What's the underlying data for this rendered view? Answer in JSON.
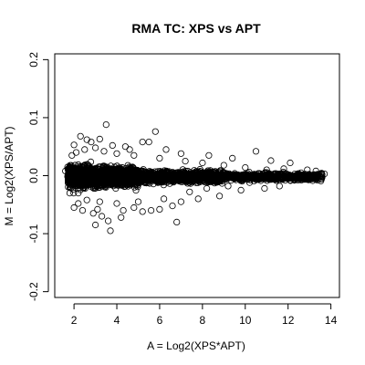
{
  "chart_data": {
    "type": "scatter",
    "title": "RMA TC: XPS vs APT",
    "xlabel": "A = Log2(XPS*APT)",
    "ylabel": "M = Log2(XPS/APT)",
    "xlim": [
      1.1,
      14.4
    ],
    "ylim": [
      -0.21,
      0.21
    ],
    "xticks": [
      2,
      4,
      6,
      8,
      10,
      12,
      14
    ],
    "yticks": [
      -0.2,
      -0.1,
      0.0,
      0.1,
      0.2
    ],
    "ytick_labels": [
      "-0.2",
      "-0.1",
      "0.0",
      "0.1",
      "0.2"
    ],
    "grid": false,
    "legend": "none",
    "marker": "open-circle",
    "color": "#000000",
    "points": [
      [
        3.5,
        0.088
      ],
      [
        2.3,
        0.068
      ],
      [
        5.8,
        0.076
      ],
      [
        2.6,
        0.062
      ],
      [
        3.2,
        0.063
      ],
      [
        2.0,
        0.053
      ],
      [
        2.8,
        0.058
      ],
      [
        3.8,
        0.052
      ],
      [
        4.4,
        0.05
      ],
      [
        5.2,
        0.058
      ],
      [
        5.5,
        0.058
      ],
      [
        4.6,
        0.045
      ],
      [
        3.0,
        0.048
      ],
      [
        6.3,
        0.045
      ],
      [
        10.5,
        0.042
      ],
      [
        7.0,
        0.038
      ],
      [
        8.3,
        0.035
      ],
      [
        9.4,
        0.03
      ],
      [
        11.2,
        0.026
      ],
      [
        12.1,
        0.022
      ],
      [
        12.9,
        0.01
      ],
      [
        13.3,
        0.008
      ],
      [
        13.7,
        0.003
      ],
      [
        12.6,
        0.005
      ],
      [
        12.3,
        -0.008
      ],
      [
        13.0,
        -0.005
      ],
      [
        11.6,
        -0.018
      ],
      [
        10.9,
        -0.022
      ],
      [
        9.8,
        -0.025
      ],
      [
        8.8,
        -0.035
      ],
      [
        7.8,
        -0.04
      ],
      [
        7.0,
        -0.045
      ],
      [
        6.6,
        -0.052
      ],
      [
        6.0,
        -0.058
      ],
      [
        5.2,
        -0.062
      ],
      [
        4.8,
        -0.055
      ],
      [
        4.3,
        -0.06
      ],
      [
        3.6,
        -0.078
      ],
      [
        3.3,
        -0.07
      ],
      [
        2.9,
        -0.065
      ],
      [
        2.4,
        -0.06
      ],
      [
        2.0,
        -0.055
      ],
      [
        3.7,
        -0.095
      ],
      [
        3.0,
        -0.085
      ],
      [
        4.2,
        -0.072
      ],
      [
        6.8,
        -0.08
      ],
      [
        5.6,
        -0.06
      ],
      [
        3.1,
        -0.058
      ],
      [
        2.2,
        -0.048
      ],
      [
        1.8,
        -0.03
      ],
      [
        1.7,
        0.015
      ],
      [
        1.6,
        0.008
      ],
      [
        1.9,
        0.035
      ],
      [
        2.1,
        0.04
      ],
      [
        2.5,
        0.045
      ],
      [
        3.4,
        0.042
      ],
      [
        4.0,
        0.038
      ],
      [
        4.8,
        0.035
      ],
      [
        6.0,
        0.03
      ],
      [
        7.2,
        0.025
      ],
      [
        8.0,
        0.022
      ],
      [
        9.0,
        0.018
      ],
      [
        10.0,
        0.014
      ],
      [
        11.0,
        0.01
      ],
      [
        11.8,
        0.012
      ],
      [
        10.2,
        -0.012
      ],
      [
        9.2,
        -0.018
      ],
      [
        8.2,
        -0.022
      ],
      [
        7.4,
        -0.028
      ],
      [
        6.2,
        -0.04
      ],
      [
        5.0,
        -0.045
      ],
      [
        4.0,
        -0.048
      ],
      [
        3.2,
        -0.045
      ],
      [
        2.6,
        -0.042
      ],
      [
        2.2,
        -0.03
      ]
    ]
  }
}
